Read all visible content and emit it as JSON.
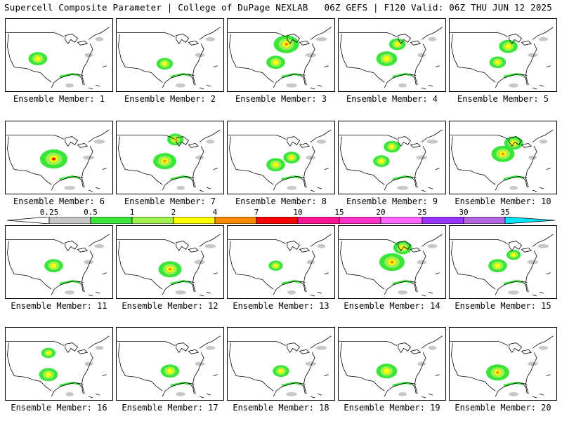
{
  "header": {
    "title": "Supercell Composite Parameter | College of DuPage NEXLAB",
    "run_info": "06Z GEFS | F120 Valid: 06Z THU JUN 12 2025"
  },
  "panels": [
    {
      "label": "Ensemble Member: 1",
      "hot": [
        [
          0.3,
          0.55,
          0.6
        ]
      ],
      "band": "tx"
    },
    {
      "label": "Ensemble Member: 2",
      "hot": [
        [
          0.45,
          0.62,
          0.5
        ]
      ],
      "band": "tx"
    },
    {
      "label": "Ensemble Member: 3",
      "hot": [
        [
          0.55,
          0.35,
          0.9
        ],
        [
          0.45,
          0.6,
          0.6
        ]
      ],
      "band": "ok"
    },
    {
      "label": "Ensemble Member: 4",
      "hot": [
        [
          0.45,
          0.55,
          0.7
        ],
        [
          0.55,
          0.35,
          0.5
        ]
      ],
      "band": "ok"
    },
    {
      "label": "Ensemble Member: 5",
      "hot": [
        [
          0.55,
          0.38,
          0.6
        ],
        [
          0.45,
          0.6,
          0.5
        ]
      ],
      "band": "ok"
    },
    {
      "label": "Ensemble Member: 6",
      "hot": [
        [
          0.45,
          0.52,
          1.0
        ]
      ],
      "band": "tx"
    },
    {
      "label": "Ensemble Member: 7",
      "hot": [
        [
          0.45,
          0.55,
          0.8
        ],
        [
          0.55,
          0.25,
          0.5
        ]
      ],
      "band": "tx"
    },
    {
      "label": "Ensemble Member: 8",
      "hot": [
        [
          0.45,
          0.6,
          0.6
        ],
        [
          0.6,
          0.5,
          0.5
        ]
      ],
      "band": "ok"
    },
    {
      "label": "Ensemble Member: 9",
      "hot": [
        [
          0.4,
          0.55,
          0.5
        ],
        [
          0.5,
          0.35,
          0.5
        ]
      ],
      "band": "tx"
    },
    {
      "label": "Ensemble Member: 10",
      "hot": [
        [
          0.5,
          0.45,
          0.8
        ],
        [
          0.6,
          0.3,
          0.6
        ]
      ],
      "band": "ok"
    },
    {
      "label": "Ensemble Member: 11",
      "hot": [
        [
          0.45,
          0.55,
          0.6
        ]
      ],
      "band": "tx"
    },
    {
      "label": "Ensemble Member: 12",
      "hot": [
        [
          0.5,
          0.6,
          0.8
        ]
      ],
      "band": "tx"
    },
    {
      "label": "Ensemble Member: 13",
      "hot": [
        [
          0.45,
          0.55,
          0.4
        ]
      ],
      "band": "tx"
    },
    {
      "label": "Ensemble Member: 14",
      "hot": [
        [
          0.5,
          0.5,
          0.9
        ],
        [
          0.6,
          0.3,
          0.6
        ]
      ],
      "band": "ok"
    },
    {
      "label": "Ensemble Member: 15",
      "hot": [
        [
          0.45,
          0.55,
          0.6
        ],
        [
          0.6,
          0.4,
          0.4
        ]
      ],
      "band": "tx"
    },
    {
      "label": "Ensemble Member: 16",
      "hot": [
        [
          0.4,
          0.65,
          0.6
        ],
        [
          0.4,
          0.35,
          0.4
        ]
      ],
      "band": "tx"
    },
    {
      "label": "Ensemble Member: 17",
      "hot": [
        [
          0.5,
          0.6,
          0.6
        ]
      ],
      "band": "tx"
    },
    {
      "label": "Ensemble Member: 18",
      "hot": [
        [
          0.5,
          0.6,
          0.5
        ]
      ],
      "band": "tx"
    },
    {
      "label": "Ensemble Member: 19",
      "hot": [
        [
          0.45,
          0.6,
          0.7
        ]
      ],
      "band": "tx"
    },
    {
      "label": "Ensemble Member: 20",
      "hot": [
        [
          0.45,
          0.62,
          0.8
        ]
      ],
      "band": "tx"
    }
  ],
  "colorbar": {
    "labels": [
      "0.25",
      "0.5",
      "1",
      "2",
      "4",
      "7",
      "10",
      "15",
      "20",
      "25",
      "30",
      "35"
    ],
    "colors": [
      "#ffffff",
      "#c8c8c8",
      "#39e639",
      "#a0f050",
      "#ffff00",
      "#ff8c00",
      "#ff0000",
      "#ff1493",
      "#ff33cc",
      "#ff66ff",
      "#9933ff",
      "#b266e0",
      "#00e5ff"
    ]
  }
}
